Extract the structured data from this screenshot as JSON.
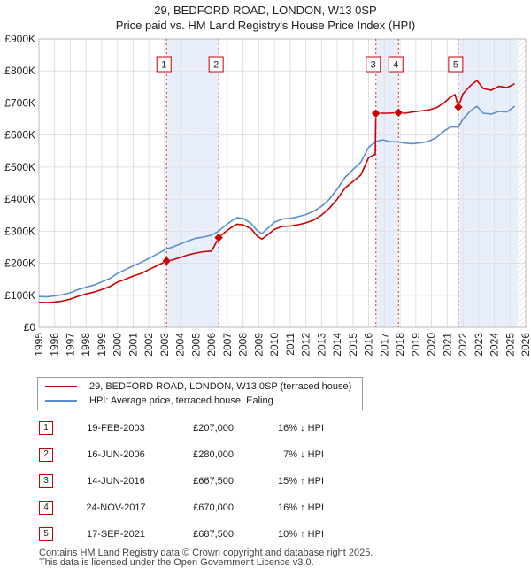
{
  "chart_data": {
    "type": "line",
    "title": "29, BEDFORD ROAD, LONDON, W13 0SP",
    "subtitle": "Price paid vs. HM Land Registry's House Price Index (HPI)",
    "xlim": [
      1995,
      2026
    ],
    "ylim": [
      0,
      900000
    ],
    "x_ticks": [
      "1995",
      "1996",
      "1997",
      "1998",
      "1999",
      "2000",
      "2001",
      "2002",
      "2003",
      "2004",
      "2005",
      "2006",
      "2007",
      "2008",
      "2009",
      "2010",
      "2011",
      "2012",
      "2013",
      "2014",
      "2015",
      "2016",
      "2017",
      "2018",
      "2019",
      "2020",
      "2021",
      "2022",
      "2023",
      "2024",
      "2025",
      "2026"
    ],
    "y_ticks": [
      {
        "value": 0,
        "label": "£0"
      },
      {
        "value": 100000,
        "label": "£100K"
      },
      {
        "value": 200000,
        "label": "£200K"
      },
      {
        "value": 300000,
        "label": "£300K"
      },
      {
        "value": 400000,
        "label": "£400K"
      },
      {
        "value": 500000,
        "label": "£500K"
      },
      {
        "value": 600000,
        "label": "£600K"
      },
      {
        "value": 700000,
        "label": "£700K"
      },
      {
        "value": 800000,
        "label": "£800K"
      },
      {
        "value": 900000,
        "label": "£900K"
      }
    ],
    "series": [
      {
        "name": "29, BEDFORD ROAD, LONDON, W13 0SP (terraced house)",
        "color": "#cc0000",
        "points": [
          [
            1995.0,
            78000
          ],
          [
            1995.5,
            77000
          ],
          [
            1996.0,
            79000
          ],
          [
            1996.5,
            82000
          ],
          [
            1997.0,
            88000
          ],
          [
            1997.5,
            97000
          ],
          [
            1998.0,
            104000
          ],
          [
            1998.5,
            110000
          ],
          [
            1999.0,
            118000
          ],
          [
            1999.5,
            127000
          ],
          [
            2000.0,
            141000
          ],
          [
            2000.5,
            150000
          ],
          [
            2001.0,
            160000
          ],
          [
            2001.5,
            168000
          ],
          [
            2002.0,
            180000
          ],
          [
            2002.5,
            192000
          ],
          [
            2003.13,
            207000
          ],
          [
            2003.5,
            210000
          ],
          [
            2004.0,
            218000
          ],
          [
            2004.5,
            226000
          ],
          [
            2005.0,
            232000
          ],
          [
            2005.5,
            236000
          ],
          [
            2006.0,
            238000
          ],
          [
            2006.45,
            280000
          ],
          [
            2006.8,
            295000
          ],
          [
            2007.2,
            310000
          ],
          [
            2007.6,
            322000
          ],
          [
            2008.0,
            320000
          ],
          [
            2008.5,
            308000
          ],
          [
            2008.9,
            285000
          ],
          [
            2009.2,
            275000
          ],
          [
            2009.6,
            290000
          ],
          [
            2010.0,
            306000
          ],
          [
            2010.5,
            315000
          ],
          [
            2011.0,
            316000
          ],
          [
            2011.5,
            320000
          ],
          [
            2012.0,
            326000
          ],
          [
            2012.5,
            335000
          ],
          [
            2013.0,
            350000
          ],
          [
            2013.5,
            372000
          ],
          [
            2014.0,
            400000
          ],
          [
            2014.5,
            435000
          ],
          [
            2015.0,
            455000
          ],
          [
            2015.5,
            475000
          ],
          [
            2016.0,
            530000
          ],
          [
            2016.42,
            540000
          ],
          [
            2016.46,
            667500
          ],
          [
            2016.9,
            668000
          ],
          [
            2017.3,
            668000
          ],
          [
            2017.9,
            670000
          ],
          [
            2018.3,
            668000
          ],
          [
            2018.8,
            672000
          ],
          [
            2019.3,
            675000
          ],
          [
            2019.8,
            678000
          ],
          [
            2020.3,
            685000
          ],
          [
            2020.8,
            700000
          ],
          [
            2021.2,
            718000
          ],
          [
            2021.5,
            726000
          ],
          [
            2021.71,
            687500
          ],
          [
            2022.0,
            728000
          ],
          [
            2022.5,
            755000
          ],
          [
            2022.9,
            770000
          ],
          [
            2023.3,
            745000
          ],
          [
            2023.8,
            740000
          ],
          [
            2024.3,
            752000
          ],
          [
            2024.8,
            748000
          ],
          [
            2025.3,
            760000
          ]
        ]
      },
      {
        "name": "HPI: Average price, terraced house, Ealing",
        "color": "#5b8fd0",
        "points": [
          [
            1995.0,
            96000
          ],
          [
            1995.5,
            95000
          ],
          [
            1996.0,
            98000
          ],
          [
            1996.5,
            102000
          ],
          [
            1997.0,
            108000
          ],
          [
            1997.5,
            118000
          ],
          [
            1998.0,
            125000
          ],
          [
            1998.5,
            132000
          ],
          [
            1999.0,
            142000
          ],
          [
            1999.5,
            152000
          ],
          [
            2000.0,
            168000
          ],
          [
            2000.5,
            180000
          ],
          [
            2001.0,
            192000
          ],
          [
            2001.5,
            202000
          ],
          [
            2002.0,
            215000
          ],
          [
            2002.5,
            228000
          ],
          [
            2003.13,
            245000
          ],
          [
            2003.5,
            250000
          ],
          [
            2004.0,
            260000
          ],
          [
            2004.5,
            270000
          ],
          [
            2005.0,
            278000
          ],
          [
            2005.5,
            282000
          ],
          [
            2006.0,
            288000
          ],
          [
            2006.45,
            300000
          ],
          [
            2006.8,
            315000
          ],
          [
            2007.2,
            330000
          ],
          [
            2007.6,
            342000
          ],
          [
            2008.0,
            340000
          ],
          [
            2008.5,
            325000
          ],
          [
            2008.9,
            302000
          ],
          [
            2009.2,
            292000
          ],
          [
            2009.6,
            310000
          ],
          [
            2010.0,
            328000
          ],
          [
            2010.5,
            338000
          ],
          [
            2011.0,
            340000
          ],
          [
            2011.5,
            345000
          ],
          [
            2012.0,
            352000
          ],
          [
            2012.5,
            362000
          ],
          [
            2013.0,
            378000
          ],
          [
            2013.5,
            400000
          ],
          [
            2014.0,
            432000
          ],
          [
            2014.5,
            468000
          ],
          [
            2015.0,
            492000
          ],
          [
            2015.5,
            515000
          ],
          [
            2016.0,
            562000
          ],
          [
            2016.46,
            580000
          ],
          [
            2016.9,
            585000
          ],
          [
            2017.3,
            580000
          ],
          [
            2017.9,
            578000
          ],
          [
            2018.3,
            575000
          ],
          [
            2018.8,
            573000
          ],
          [
            2019.3,
            576000
          ],
          [
            2019.8,
            580000
          ],
          [
            2020.3,
            592000
          ],
          [
            2020.8,
            612000
          ],
          [
            2021.2,
            625000
          ],
          [
            2021.71,
            625000
          ],
          [
            2022.0,
            650000
          ],
          [
            2022.5,
            676000
          ],
          [
            2022.9,
            690000
          ],
          [
            2023.3,
            668000
          ],
          [
            2023.8,
            665000
          ],
          [
            2024.3,
            674000
          ],
          [
            2024.8,
            672000
          ],
          [
            2025.3,
            690000
          ]
        ]
      }
    ],
    "sales": [
      {
        "n": "1",
        "x": 2003.13,
        "value": 207000,
        "date": "19-FEB-2003",
        "price": "£207,000",
        "hpi": "16% ↓ HPI"
      },
      {
        "n": "2",
        "x": 2006.45,
        "value": 280000,
        "date": "16-JUN-2006",
        "price": "£280,000",
        "hpi": "7% ↓ HPI"
      },
      {
        "n": "3",
        "x": 2016.46,
        "value": 667500,
        "date": "14-JUN-2016",
        "price": "£667,500",
        "hpi": "15% ↑ HPI"
      },
      {
        "n": "4",
        "x": 2017.9,
        "value": 670000,
        "date": "24-NOV-2017",
        "price": "£670,000",
        "hpi": "16% ↑ HPI"
      },
      {
        "n": "5",
        "x": 2021.71,
        "value": 687500,
        "date": "17-SEP-2021",
        "price": "£687,500",
        "hpi": "10% ↑ HPI"
      }
    ],
    "shaded_ranges": [
      [
        2003.13,
        2006.45
      ],
      [
        2016.46,
        2017.9
      ],
      [
        2021.71,
        2025.5
      ]
    ],
    "future_start": 2025.5,
    "colors": {
      "grid": "#e0e0e0",
      "shade": "#e8eefa",
      "marker": "#cc0000"
    }
  },
  "legend": {
    "property_label": "29, BEDFORD ROAD, LONDON, W13 0SP (terraced house)",
    "hpi_label": "HPI: Average price, terraced house, Ealing"
  },
  "footer": {
    "line1": "Contains HM Land Registry data © Crown copyright and database right 2025.",
    "line2": "This data is licensed under the Open Government Licence v3.0."
  }
}
